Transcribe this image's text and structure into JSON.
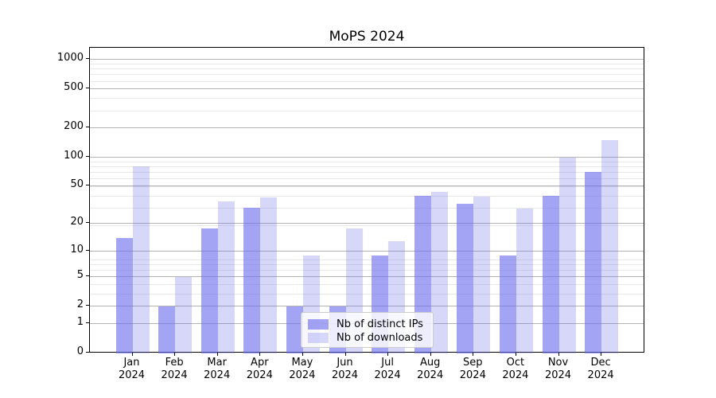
{
  "title": "MoPS 2024",
  "colors": {
    "bar_distinct_ips_effective": "#a5a5f3",
    "bar_downloads_effective": "#d6d6f9",
    "grid_major": "#b3b3b3",
    "grid_minor": "#e8e8e8",
    "axis": "#000000",
    "legend_border": "#cccccc"
  },
  "chart_data": {
    "type": "bar",
    "title": "MoPS 2024",
    "categories": [
      "Jan",
      "Feb",
      "Mar",
      "Apr",
      "May",
      "Jun",
      "Jul",
      "Aug",
      "Sep",
      "Oct",
      "Nov",
      "Dec"
    ],
    "x_year_label": "2024",
    "series": [
      {
        "name": "Nb of distinct IPs",
        "color": "rgba(108,108,237,0.62)",
        "values": [
          14,
          2,
          18,
          30,
          2,
          2,
          9,
          40,
          33,
          9,
          40,
          70
        ]
      },
      {
        "name": "Nb of downloads",
        "color": "rgba(108,108,237,0.27)",
        "values": [
          80,
          5,
          35,
          38,
          9,
          18,
          13,
          44,
          39,
          29,
          100,
          150
        ]
      }
    ],
    "y_ticks": [
      0,
      1,
      2,
      5,
      10,
      20,
      50,
      100,
      200,
      500,
      1000
    ],
    "y_scale": "log1p",
    "ylim": [
      0,
      1330
    ],
    "xlabel": "",
    "ylabel": "",
    "grid": true,
    "legend_position": "lower center (inside plot)"
  }
}
